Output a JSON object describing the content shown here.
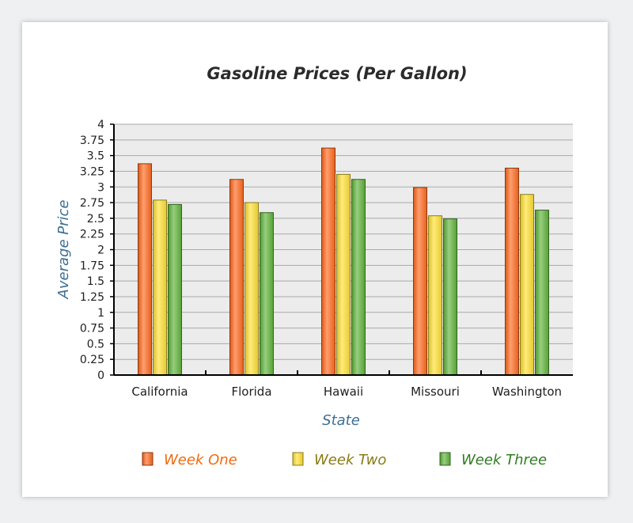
{
  "chart_data": {
    "type": "bar",
    "title": "Gasoline Prices (Per Gallon)",
    "xlabel": "State",
    "ylabel": "Average Price",
    "ylim": [
      0,
      4
    ],
    "yticks": [
      "0",
      "0.25",
      "0.5",
      "0.75",
      "1",
      "1.25",
      "1.5",
      "1.75",
      "2",
      "2.25",
      "2.5",
      "2.75",
      "3",
      "3.25",
      "3.5",
      "3.75",
      "4"
    ],
    "categories": [
      "California",
      "Florida",
      "Hawaii",
      "Missouri",
      "Washington"
    ],
    "series": [
      {
        "name": "Week One",
        "color": "#ff6a1f",
        "values": [
          3.37,
          3.12,
          3.62,
          2.99,
          3.3
        ]
      },
      {
        "name": "Week Two",
        "color": "#ffe033",
        "values": [
          2.79,
          2.75,
          3.2,
          2.54,
          2.88
        ]
      },
      {
        "name": "Week Three",
        "color": "#5fb33a",
        "values": [
          2.72,
          2.59,
          3.12,
          2.49,
          2.63
        ]
      }
    ],
    "legend_text_colors": [
      "#f26a10",
      "#8a7a12",
      "#2f7d20"
    ],
    "grid": true,
    "legend_position": "bottom"
  }
}
